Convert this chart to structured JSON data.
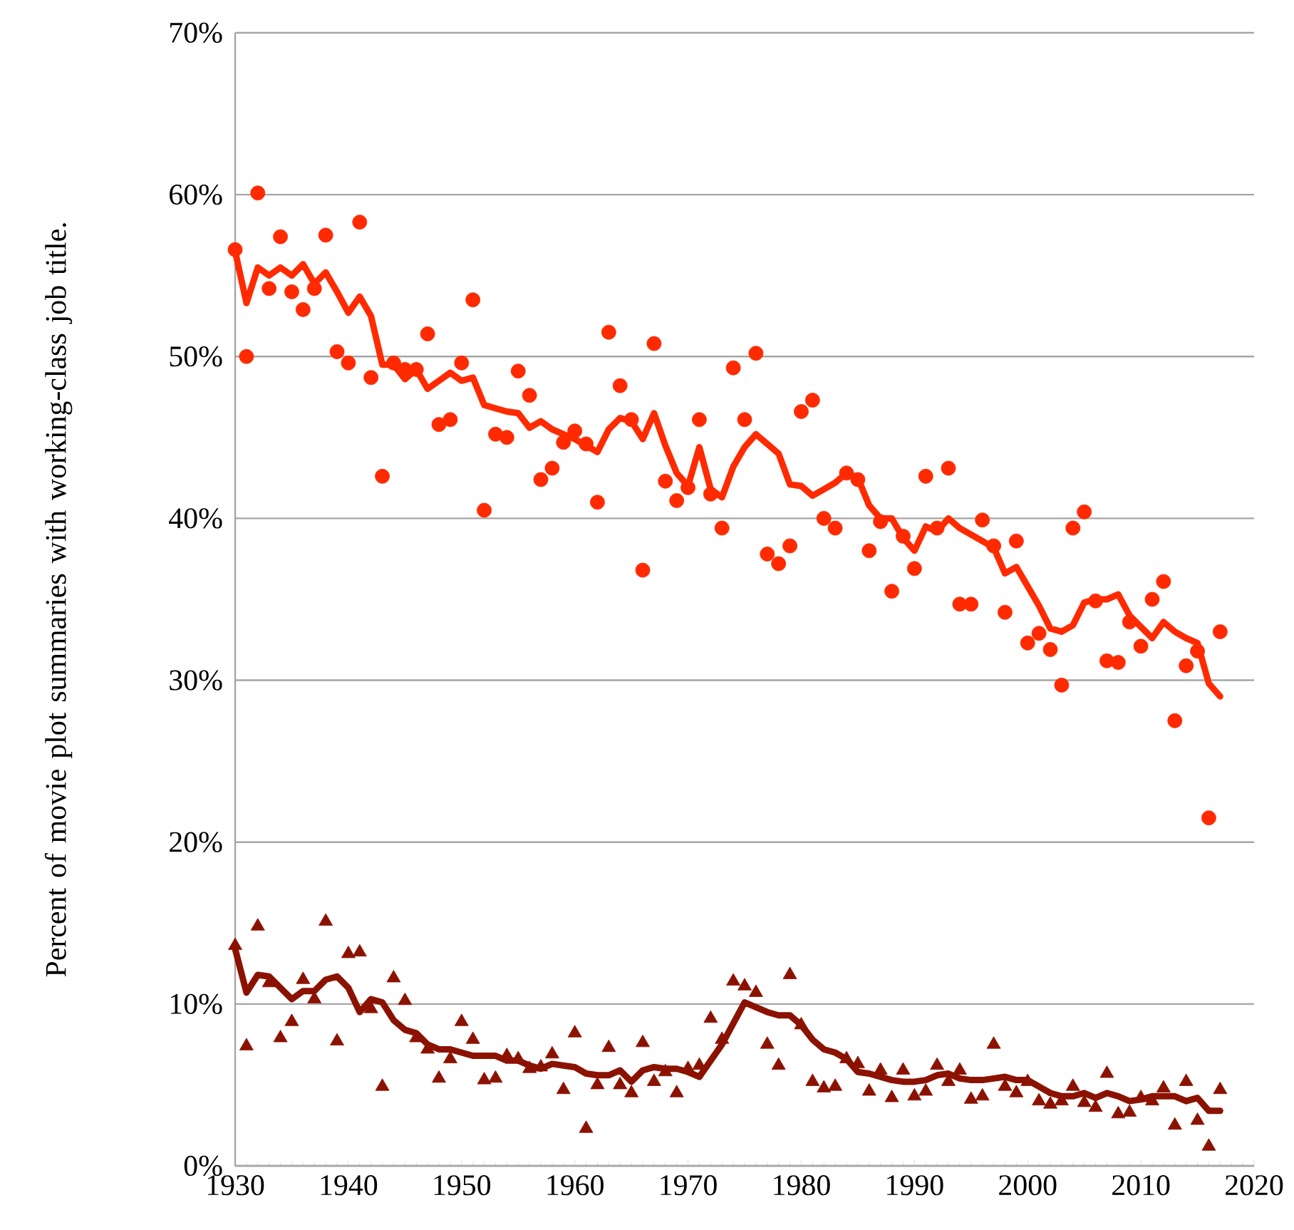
{
  "chart_data": {
    "type": "scatter",
    "ylabel": "Percent of movie plot summaries with working-class job title.",
    "x": [
      1930,
      1931,
      1932,
      1933,
      1934,
      1935,
      1936,
      1937,
      1938,
      1939,
      1940,
      1941,
      1942,
      1943,
      1944,
      1945,
      1946,
      1947,
      1948,
      1949,
      1950,
      1951,
      1952,
      1953,
      1954,
      1955,
      1956,
      1957,
      1958,
      1959,
      1960,
      1961,
      1962,
      1963,
      1964,
      1965,
      1966,
      1967,
      1968,
      1969,
      1970,
      1971,
      1972,
      1973,
      1974,
      1975,
      1976,
      1977,
      1978,
      1979,
      1980,
      1981,
      1982,
      1983,
      1984,
      1985,
      1986,
      1987,
      1988,
      1989,
      1990,
      1991,
      1992,
      1993,
      1994,
      1995,
      1996,
      1997,
      1998,
      1999,
      2000,
      2001,
      2002,
      2003,
      2004,
      2005,
      2006,
      2007,
      2008,
      2009,
      2010,
      2011,
      2012,
      2013,
      2014,
      2015,
      2016,
      2017
    ],
    "series": [
      {
        "marker": "circle",
        "color": "#ff2a00",
        "values": [
          56.6,
          50.0,
          60.1,
          54.2,
          57.4,
          54.0,
          52.9,
          54.2,
          57.5,
          50.3,
          49.6,
          58.3,
          48.7,
          42.6,
          49.6,
          49.2,
          49.2,
          51.4,
          45.8,
          46.1,
          49.6,
          53.5,
          40.5,
          45.2,
          45.0,
          49.1,
          47.6,
          42.4,
          43.1,
          44.7,
          45.4,
          44.6,
          41.0,
          51.5,
          48.2,
          46.1,
          36.8,
          50.8,
          42.3,
          41.1,
          41.9,
          46.1,
          41.5,
          39.4,
          49.3,
          46.1,
          50.2,
          37.8,
          37.2,
          38.3,
          46.6,
          47.3,
          40.0,
          39.4,
          42.8,
          42.4,
          38.0,
          39.8,
          35.5,
          38.9,
          36.9,
          42.6,
          39.4,
          43.1,
          34.7,
          34.7,
          39.9,
          38.3,
          34.2,
          38.6,
          32.3,
          32.9,
          31.9,
          29.7,
          39.4,
          40.4,
          34.9,
          31.2,
          31.1,
          33.6,
          32.1,
          35.0,
          36.1,
          27.5,
          30.9,
          31.8,
          21.5,
          33.0
        ]
      },
      {
        "type": "line",
        "marker": "none",
        "color": "#ff2a00",
        "values": [
          56.5,
          53.3,
          55.5,
          55.0,
          55.5,
          55.0,
          55.7,
          54.5,
          55.2,
          54.0,
          52.7,
          53.7,
          52.5,
          49.5,
          49.5,
          48.6,
          49.2,
          48.0,
          48.5,
          49.0,
          48.5,
          48.7,
          47.0,
          46.8,
          46.6,
          46.5,
          45.6,
          46.0,
          45.5,
          45.2,
          44.9,
          44.5,
          44.1,
          45.5,
          46.2,
          46.0,
          44.9,
          46.5,
          44.5,
          42.8,
          42.0,
          44.4,
          41.8,
          41.3,
          43.2,
          44.4,
          45.2,
          44.6,
          44.0,
          42.1,
          42.0,
          41.4,
          41.8,
          42.2,
          42.8,
          42.5,
          40.8,
          40.0,
          40.0,
          38.8,
          38.0,
          39.5,
          39.2,
          40.0,
          39.4,
          39.0,
          38.6,
          38.2,
          36.6,
          37.0,
          35.8,
          34.6,
          33.2,
          33.0,
          33.4,
          34.8,
          35.0,
          35.0,
          35.3,
          34.0,
          33.3,
          32.6,
          33.6,
          33.0,
          32.6,
          32.3,
          29.8,
          29.0
        ]
      },
      {
        "marker": "triangle",
        "color": "#8b1200",
        "values": [
          13.6,
          7.4,
          14.8,
          11.3,
          7.9,
          8.9,
          11.5,
          10.3,
          15.1,
          7.7,
          13.1,
          13.2,
          9.7,
          4.9,
          11.6,
          10.2,
          7.9,
          7.2,
          5.4,
          6.6,
          8.9,
          7.8,
          5.3,
          5.4,
          6.8,
          6.6,
          6.0,
          6.1,
          6.9,
          4.7,
          8.2,
          2.3,
          5.0,
          7.3,
          5.0,
          4.5,
          7.6,
          5.2,
          5.8,
          4.5,
          6.0,
          6.2,
          9.1,
          7.8,
          11.4,
          11.1,
          10.7,
          7.5,
          6.2,
          11.8,
          8.7,
          5.2,
          4.8,
          4.9,
          6.6,
          6.3,
          4.6,
          5.9,
          4.2,
          5.9,
          4.3,
          4.6,
          6.2,
          5.2,
          5.9,
          4.1,
          4.3,
          7.5,
          4.9,
          4.5,
          5.2,
          4.0,
          3.8,
          4.0,
          4.9,
          3.9,
          3.6,
          5.7,
          3.2,
          3.3,
          4.2,
          4.0,
          4.8,
          2.5,
          5.2,
          2.8,
          1.2,
          4.7
        ]
      },
      {
        "type": "line",
        "marker": "none",
        "color": "#8b1200",
        "values": [
          13.4,
          10.7,
          11.8,
          11.7,
          11.0,
          10.3,
          10.8,
          10.8,
          11.5,
          11.7,
          11.0,
          9.5,
          10.3,
          10.1,
          9.0,
          8.4,
          8.2,
          7.5,
          7.2,
          7.2,
          7.0,
          6.8,
          6.8,
          6.8,
          6.5,
          6.5,
          6.2,
          6.0,
          6.3,
          6.2,
          6.1,
          5.7,
          5.6,
          5.6,
          5.9,
          5.2,
          5.9,
          6.1,
          6.0,
          6.0,
          5.8,
          5.5,
          6.5,
          7.5,
          8.8,
          10.1,
          9.8,
          9.5,
          9.3,
          9.3,
          8.7,
          7.8,
          7.2,
          7.0,
          6.6,
          5.8,
          5.7,
          5.5,
          5.3,
          5.2,
          5.2,
          5.3,
          5.6,
          5.7,
          5.4,
          5.3,
          5.3,
          5.4,
          5.5,
          5.3,
          5.3,
          4.9,
          4.5,
          4.3,
          4.3,
          4.5,
          4.2,
          4.5,
          4.3,
          4.0,
          4.1,
          4.3,
          4.3,
          4.3,
          4.0,
          4.2,
          3.4,
          3.4
        ]
      }
    ],
    "xlim": [
      1930,
      2020
    ],
    "xticks": [
      1930,
      1940,
      1950,
      1960,
      1970,
      1980,
      1990,
      2000,
      2010,
      2020
    ],
    "ylim": [
      0,
      70
    ],
    "yticks": [
      {
        "value": 0,
        "label": "0%"
      },
      {
        "value": 10,
        "label": "10%"
      },
      {
        "value": 20,
        "label": "20%"
      },
      {
        "value": 30,
        "label": "30%"
      },
      {
        "value": 40,
        "label": "40%"
      },
      {
        "value": 50,
        "label": "50%"
      },
      {
        "value": 60,
        "label": "60%"
      },
      {
        "value": 70,
        "label": "70%"
      }
    ],
    "grid": "y",
    "legend": false
  }
}
